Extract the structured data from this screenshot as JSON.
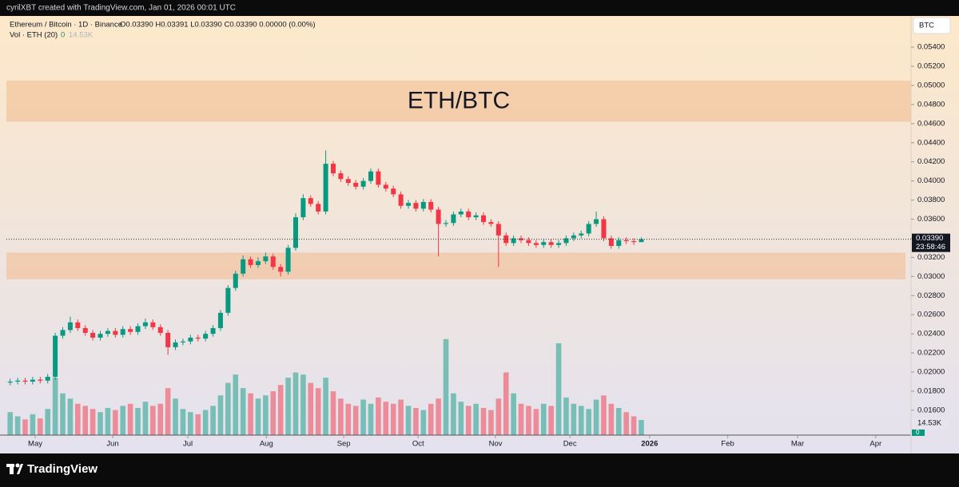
{
  "attribution": "cyrilXBT created with TradingView.com, Jan 01, 2026 00:01 UTC",
  "brand": "TradingView",
  "chart_data": {
    "type": "candlestick",
    "symbol": "Ethereum / Bitcoin · 1D · Binance",
    "ohlc_text": "O0.03390 H0.03391 L0.03390 C0.03390 0.00000 (0.00%)",
    "volume_title": "Vol · ETH (20)",
    "volume_ma_text": "0",
    "volume_value_text": "14.53K",
    "currency": "BTC",
    "annotation": "ETH/BTC",
    "up_color": "#089981",
    "down_color": "#f23645",
    "zone_color": "#f3b98c",
    "zones": [
      {
        "from": 0.0462,
        "to": 0.0505
      },
      {
        "from": 0.0297,
        "to": 0.0325
      }
    ],
    "last_price": {
      "value": 0.0339,
      "label": "0.03390"
    },
    "countdown": "23:58:46",
    "open": [
      0.0189,
      0.019,
      0.0191,
      0.019,
      0.0192,
      0.0191,
      0.0195,
      0.0238,
      0.0244,
      0.0252,
      0.0246,
      0.0241,
      0.0236,
      0.024,
      0.0243,
      0.0239,
      0.0245,
      0.0242,
      0.0248,
      0.0252,
      0.0247,
      0.0241,
      0.0226,
      0.0231,
      0.0232,
      0.0236,
      0.0235,
      0.024,
      0.0246,
      0.0262,
      0.0288,
      0.0303,
      0.0318,
      0.0312,
      0.0316,
      0.0321,
      0.031,
      0.0305,
      0.033,
      0.0362,
      0.0382,
      0.0376,
      0.0368,
      0.0418,
      0.0408,
      0.0402,
      0.0398,
      0.0394,
      0.04,
      0.041,
      0.0396,
      0.0392,
      0.0386,
      0.0374,
      0.0377,
      0.0371,
      0.0378,
      0.037,
      0.0355,
      0.0356,
      0.0365,
      0.0368,
      0.0362,
      0.0364,
      0.0357,
      0.0355,
      0.0343,
      0.0335,
      0.034,
      0.0338,
      0.0335,
      0.0333,
      0.0336,
      0.0333,
      0.0335,
      0.034,
      0.0343,
      0.0345,
      0.0355,
      0.036,
      0.034,
      0.0332,
      0.0338,
      0.0337,
      0.0336
    ],
    "high": [
      0.0193,
      0.0194,
      0.0194,
      0.0195,
      0.0195,
      0.0198,
      0.0241,
      0.0247,
      0.0258,
      0.0255,
      0.0249,
      0.0244,
      0.0243,
      0.0246,
      0.0246,
      0.0248,
      0.0248,
      0.0251,
      0.0256,
      0.0255,
      0.025,
      0.0244,
      0.0234,
      0.0235,
      0.0239,
      0.0239,
      0.0243,
      0.0249,
      0.0265,
      0.0291,
      0.0306,
      0.0322,
      0.0321,
      0.032,
      0.0325,
      0.0324,
      0.0313,
      0.0333,
      0.0366,
      0.0386,
      0.0385,
      0.0379,
      0.0432,
      0.0421,
      0.0411,
      0.0405,
      0.0401,
      0.0403,
      0.0413,
      0.0413,
      0.0399,
      0.0395,
      0.0389,
      0.038,
      0.038,
      0.0381,
      0.0381,
      0.0373,
      0.0359,
      0.0368,
      0.0371,
      0.0371,
      0.0367,
      0.0367,
      0.036,
      0.0358,
      0.0346,
      0.0343,
      0.0343,
      0.0341,
      0.0338,
      0.0339,
      0.0339,
      0.0338,
      0.0343,
      0.0346,
      0.0348,
      0.0358,
      0.0368,
      0.0363,
      0.0343,
      0.0341,
      0.0341,
      0.034,
      0.0341
    ],
    "low": [
      0.0186,
      0.0187,
      0.0187,
      0.0187,
      0.0188,
      0.0188,
      0.0192,
      0.0235,
      0.0241,
      0.0243,
      0.0238,
      0.0233,
      0.0233,
      0.0237,
      0.0236,
      0.0236,
      0.0239,
      0.0239,
      0.0245,
      0.0244,
      0.0238,
      0.0218,
      0.0223,
      0.0228,
      0.0229,
      0.0232,
      0.0232,
      0.0237,
      0.0243,
      0.0259,
      0.0285,
      0.03,
      0.0309,
      0.0309,
      0.0313,
      0.0307,
      0.03,
      0.0302,
      0.0327,
      0.0359,
      0.0373,
      0.0365,
      0.0365,
      0.0405,
      0.0399,
      0.0395,
      0.0391,
      0.0391,
      0.0397,
      0.0393,
      0.0389,
      0.0383,
      0.0371,
      0.0371,
      0.0368,
      0.0368,
      0.0367,
      0.0321,
      0.0352,
      0.0353,
      0.0362,
      0.0359,
      0.0359,
      0.0354,
      0.0352,
      0.031,
      0.0332,
      0.0332,
      0.0335,
      0.0332,
      0.033,
      0.033,
      0.033,
      0.033,
      0.0332,
      0.0337,
      0.034,
      0.0342,
      0.0352,
      0.0337,
      0.0329,
      0.0329,
      0.0334,
      0.0333,
      0.0336
    ],
    "close": [
      0.019,
      0.0191,
      0.019,
      0.0192,
      0.0191,
      0.0195,
      0.0238,
      0.0244,
      0.0252,
      0.0246,
      0.0241,
      0.0236,
      0.024,
      0.0243,
      0.0239,
      0.0245,
      0.0242,
      0.0248,
      0.0252,
      0.0247,
      0.0241,
      0.0226,
      0.0231,
      0.0232,
      0.0236,
      0.0235,
      0.024,
      0.0246,
      0.0262,
      0.0288,
      0.0303,
      0.0318,
      0.0312,
      0.0316,
      0.0321,
      0.031,
      0.0305,
      0.033,
      0.0362,
      0.0382,
      0.0376,
      0.0368,
      0.0418,
      0.0408,
      0.0402,
      0.0398,
      0.0394,
      0.04,
      0.041,
      0.0396,
      0.0392,
      0.0386,
      0.0374,
      0.0377,
      0.0371,
      0.0378,
      0.037,
      0.0355,
      0.0356,
      0.0365,
      0.0368,
      0.0362,
      0.0364,
      0.0357,
      0.0355,
      0.0343,
      0.0335,
      0.034,
      0.0338,
      0.0335,
      0.0333,
      0.0336,
      0.0333,
      0.0335,
      0.034,
      0.0343,
      0.0345,
      0.0355,
      0.036,
      0.034,
      0.0332,
      0.0338,
      0.0337,
      0.0336,
      0.0339
    ],
    "series": [
      {
        "name": "Vol",
        "axis": "y2",
        "values": [
          22,
          18,
          15,
          20,
          16,
          25,
          55,
          40,
          35,
          30,
          28,
          25,
          22,
          26,
          24,
          28,
          30,
          26,
          32,
          28,
          30,
          45,
          35,
          25,
          22,
          20,
          24,
          28,
          38,
          50,
          58,
          45,
          40,
          35,
          38,
          42,
          48,
          55,
          60,
          58,
          50,
          45,
          55,
          42,
          35,
          30,
          28,
          34,
          30,
          36,
          32,
          30,
          34,
          28,
          26,
          24,
          30,
          35,
          92,
          40,
          32,
          28,
          30,
          26,
          24,
          35,
          60,
          40,
          30,
          28,
          25,
          30,
          28,
          88,
          36,
          30,
          28,
          25,
          34,
          38,
          30,
          26,
          22,
          18,
          14.53
        ]
      }
    ],
    "y2lim": [
      0,
      400
    ],
    "xlim": [
      0,
      120.4
    ],
    "xticks": [
      {
        "value": 3.83,
        "label": "May"
      },
      {
        "value": 14.15,
        "label": "Jun"
      },
      {
        "value": 24.15,
        "label": "Jul"
      },
      {
        "value": 34.6,
        "label": "Aug"
      },
      {
        "value": 44.9,
        "label": "Sep"
      },
      {
        "value": 54.8,
        "label": "Oct"
      },
      {
        "value": 65.1,
        "label": "Nov"
      },
      {
        "value": 75,
        "label": "Dec"
      },
      {
        "value": 85.6,
        "label": "2026"
      },
      {
        "value": 96,
        "label": "Feb"
      },
      {
        "value": 105.3,
        "label": "Mar"
      },
      {
        "value": 115.7,
        "label": "Apr"
      }
    ],
    "ylim": [
      0.0134,
      0.0571
    ],
    "yticks": [
      {
        "value": 0.016,
        "label": "0.01600"
      },
      {
        "value": 0.018,
        "label": "0.01800"
      },
      {
        "value": 0.02,
        "label": "0.02000"
      },
      {
        "value": 0.022,
        "label": "0.02200"
      },
      {
        "value": 0.024,
        "label": "0.02400"
      },
      {
        "value": 0.026,
        "label": "0.02600"
      },
      {
        "value": 0.028,
        "label": "0.02800"
      },
      {
        "value": 0.03,
        "label": "0.03000"
      },
      {
        "value": 0.032,
        "label": "0.03200"
      },
      {
        "value": 0.034,
        "label": "0.03400"
      },
      {
        "value": 0.036,
        "label": "0.03600"
      },
      {
        "value": 0.038,
        "label": "0.03800"
      },
      {
        "value": 0.04,
        "label": "0.04000"
      },
      {
        "value": 0.042,
        "label": "0.04200"
      },
      {
        "value": 0.044,
        "label": "0.04400"
      },
      {
        "value": 0.046,
        "label": "0.04600"
      },
      {
        "value": 0.048,
        "label": "0.04800"
      },
      {
        "value": 0.05,
        "label": "0.05000"
      },
      {
        "value": 0.052,
        "label": "0.05200"
      },
      {
        "value": 0.054,
        "label": "0.05400"
      }
    ]
  }
}
